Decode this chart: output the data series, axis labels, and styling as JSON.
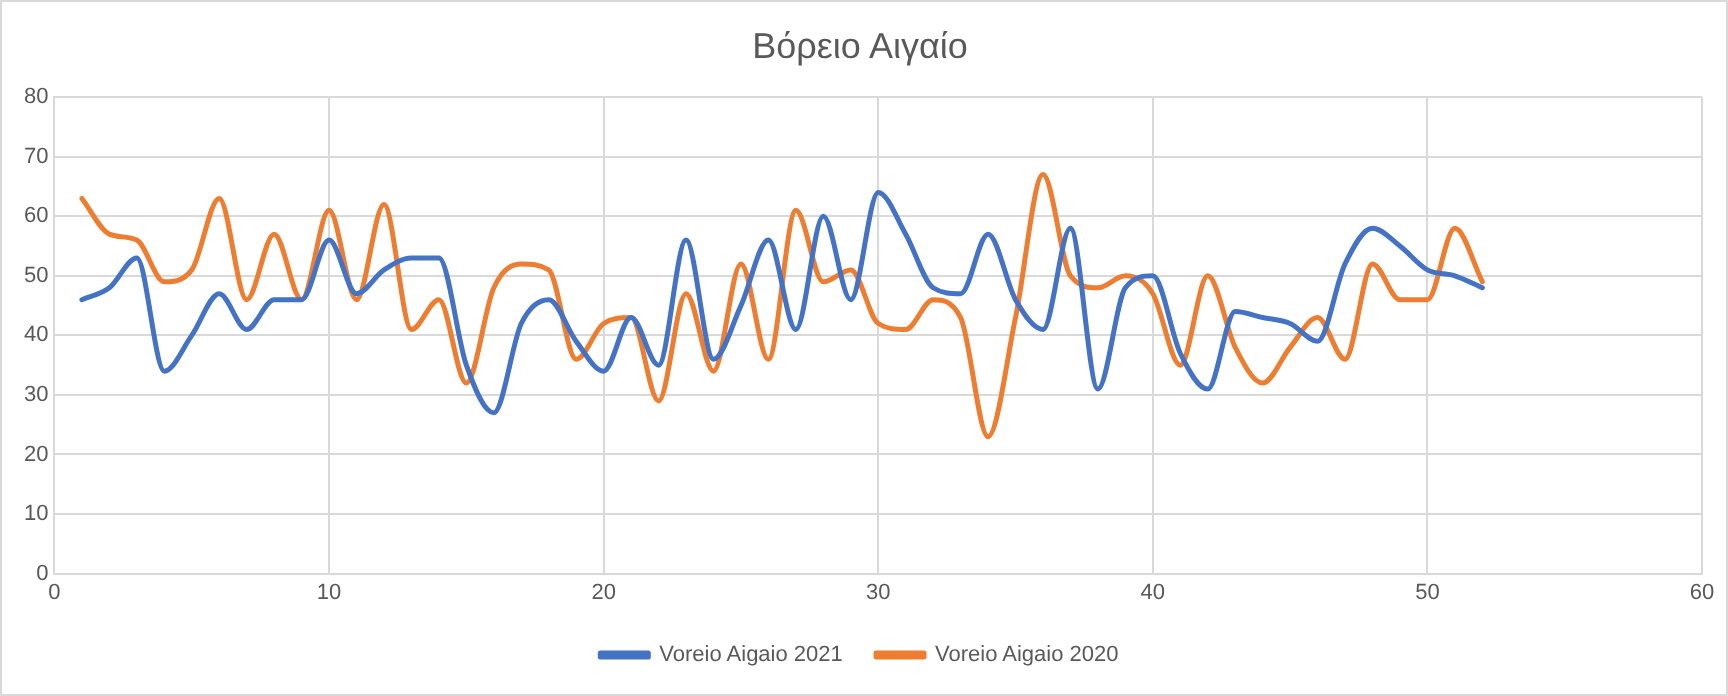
{
  "chart_data": {
    "type": "line",
    "title": "Βόρειο Αιγαίο",
    "x": [
      1,
      2,
      3,
      4,
      5,
      6,
      7,
      8,
      9,
      10,
      11,
      12,
      13,
      14,
      15,
      16,
      17,
      18,
      19,
      20,
      21,
      22,
      23,
      24,
      25,
      26,
      27,
      28,
      29,
      30,
      31,
      32,
      33,
      34,
      35,
      36,
      37,
      38,
      39,
      40,
      41,
      42,
      43,
      44,
      45,
      46,
      47,
      48,
      49,
      50,
      51,
      52
    ],
    "series": [
      {
        "name": "Voreio Aigaio 2021",
        "color": "#4472c4",
        "values": [
          46,
          48,
          53,
          34,
          40,
          47,
          41,
          46,
          46,
          56,
          47,
          51,
          53,
          53,
          35,
          27,
          42,
          46,
          39,
          34,
          43,
          35,
          56,
          36,
          45,
          56,
          41,
          60,
          46,
          64,
          57,
          48,
          47,
          57,
          46,
          41,
          58,
          31,
          48,
          50,
          37,
          31,
          44,
          43,
          42,
          39,
          52,
          58,
          55,
          51,
          50,
          48
        ]
      },
      {
        "name": "Voreio Aigaio 2020",
        "color": "#ed7d31",
        "values": [
          63,
          57,
          56,
          49,
          51,
          63,
          46,
          57,
          46,
          61,
          46,
          62,
          41,
          46,
          32,
          48,
          52,
          51,
          36,
          42,
          43,
          29,
          47,
          34,
          52,
          36,
          61,
          49,
          51,
          42,
          41,
          46,
          43,
          23,
          43,
          67,
          50,
          48,
          50,
          47,
          35,
          50,
          38,
          32,
          38,
          43,
          36,
          52,
          46,
          46,
          58,
          49
        ]
      }
    ],
    "xlim": [
      0,
      60
    ],
    "xticks": [
      0,
      10,
      20,
      30,
      40,
      50,
      60
    ],
    "ylim": [
      0,
      80
    ],
    "yticks": [
      0,
      10,
      20,
      30,
      40,
      50,
      60,
      70,
      80
    ],
    "grid": true,
    "legend": "bottom",
    "marker": "none",
    "line_style": "solid"
  }
}
